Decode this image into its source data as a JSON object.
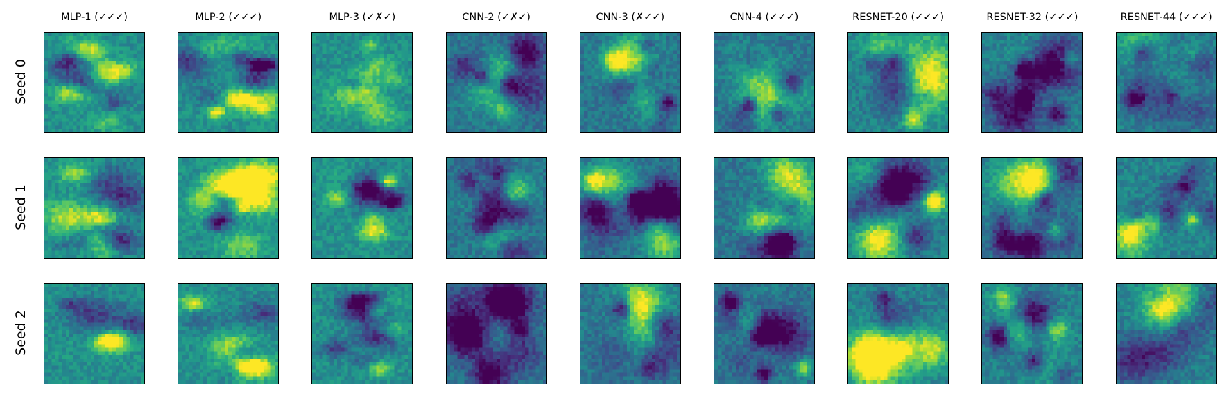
{
  "chart_data": {
    "type": "heatmap",
    "layout": "grid",
    "colormap": "viridis",
    "grid": false,
    "columns": [
      "MLP-1 (✓✓✓)",
      "MLP-2 (✓✓✓)",
      "MLP-3 (✓✗✓)",
      "CNN-2 (✓✗✓)",
      "CNN-3 (✗✓✓)",
      "CNN-4 (✓✓✓)",
      "RESNET-20 (✓✓✓)",
      "RESNET-32 (✓✓✓)",
      "RESNET-44 (✓✓✓)"
    ],
    "rows": [
      "Seed 0",
      "Seed 1",
      "Seed 2"
    ],
    "axes_ticks": false
  }
}
